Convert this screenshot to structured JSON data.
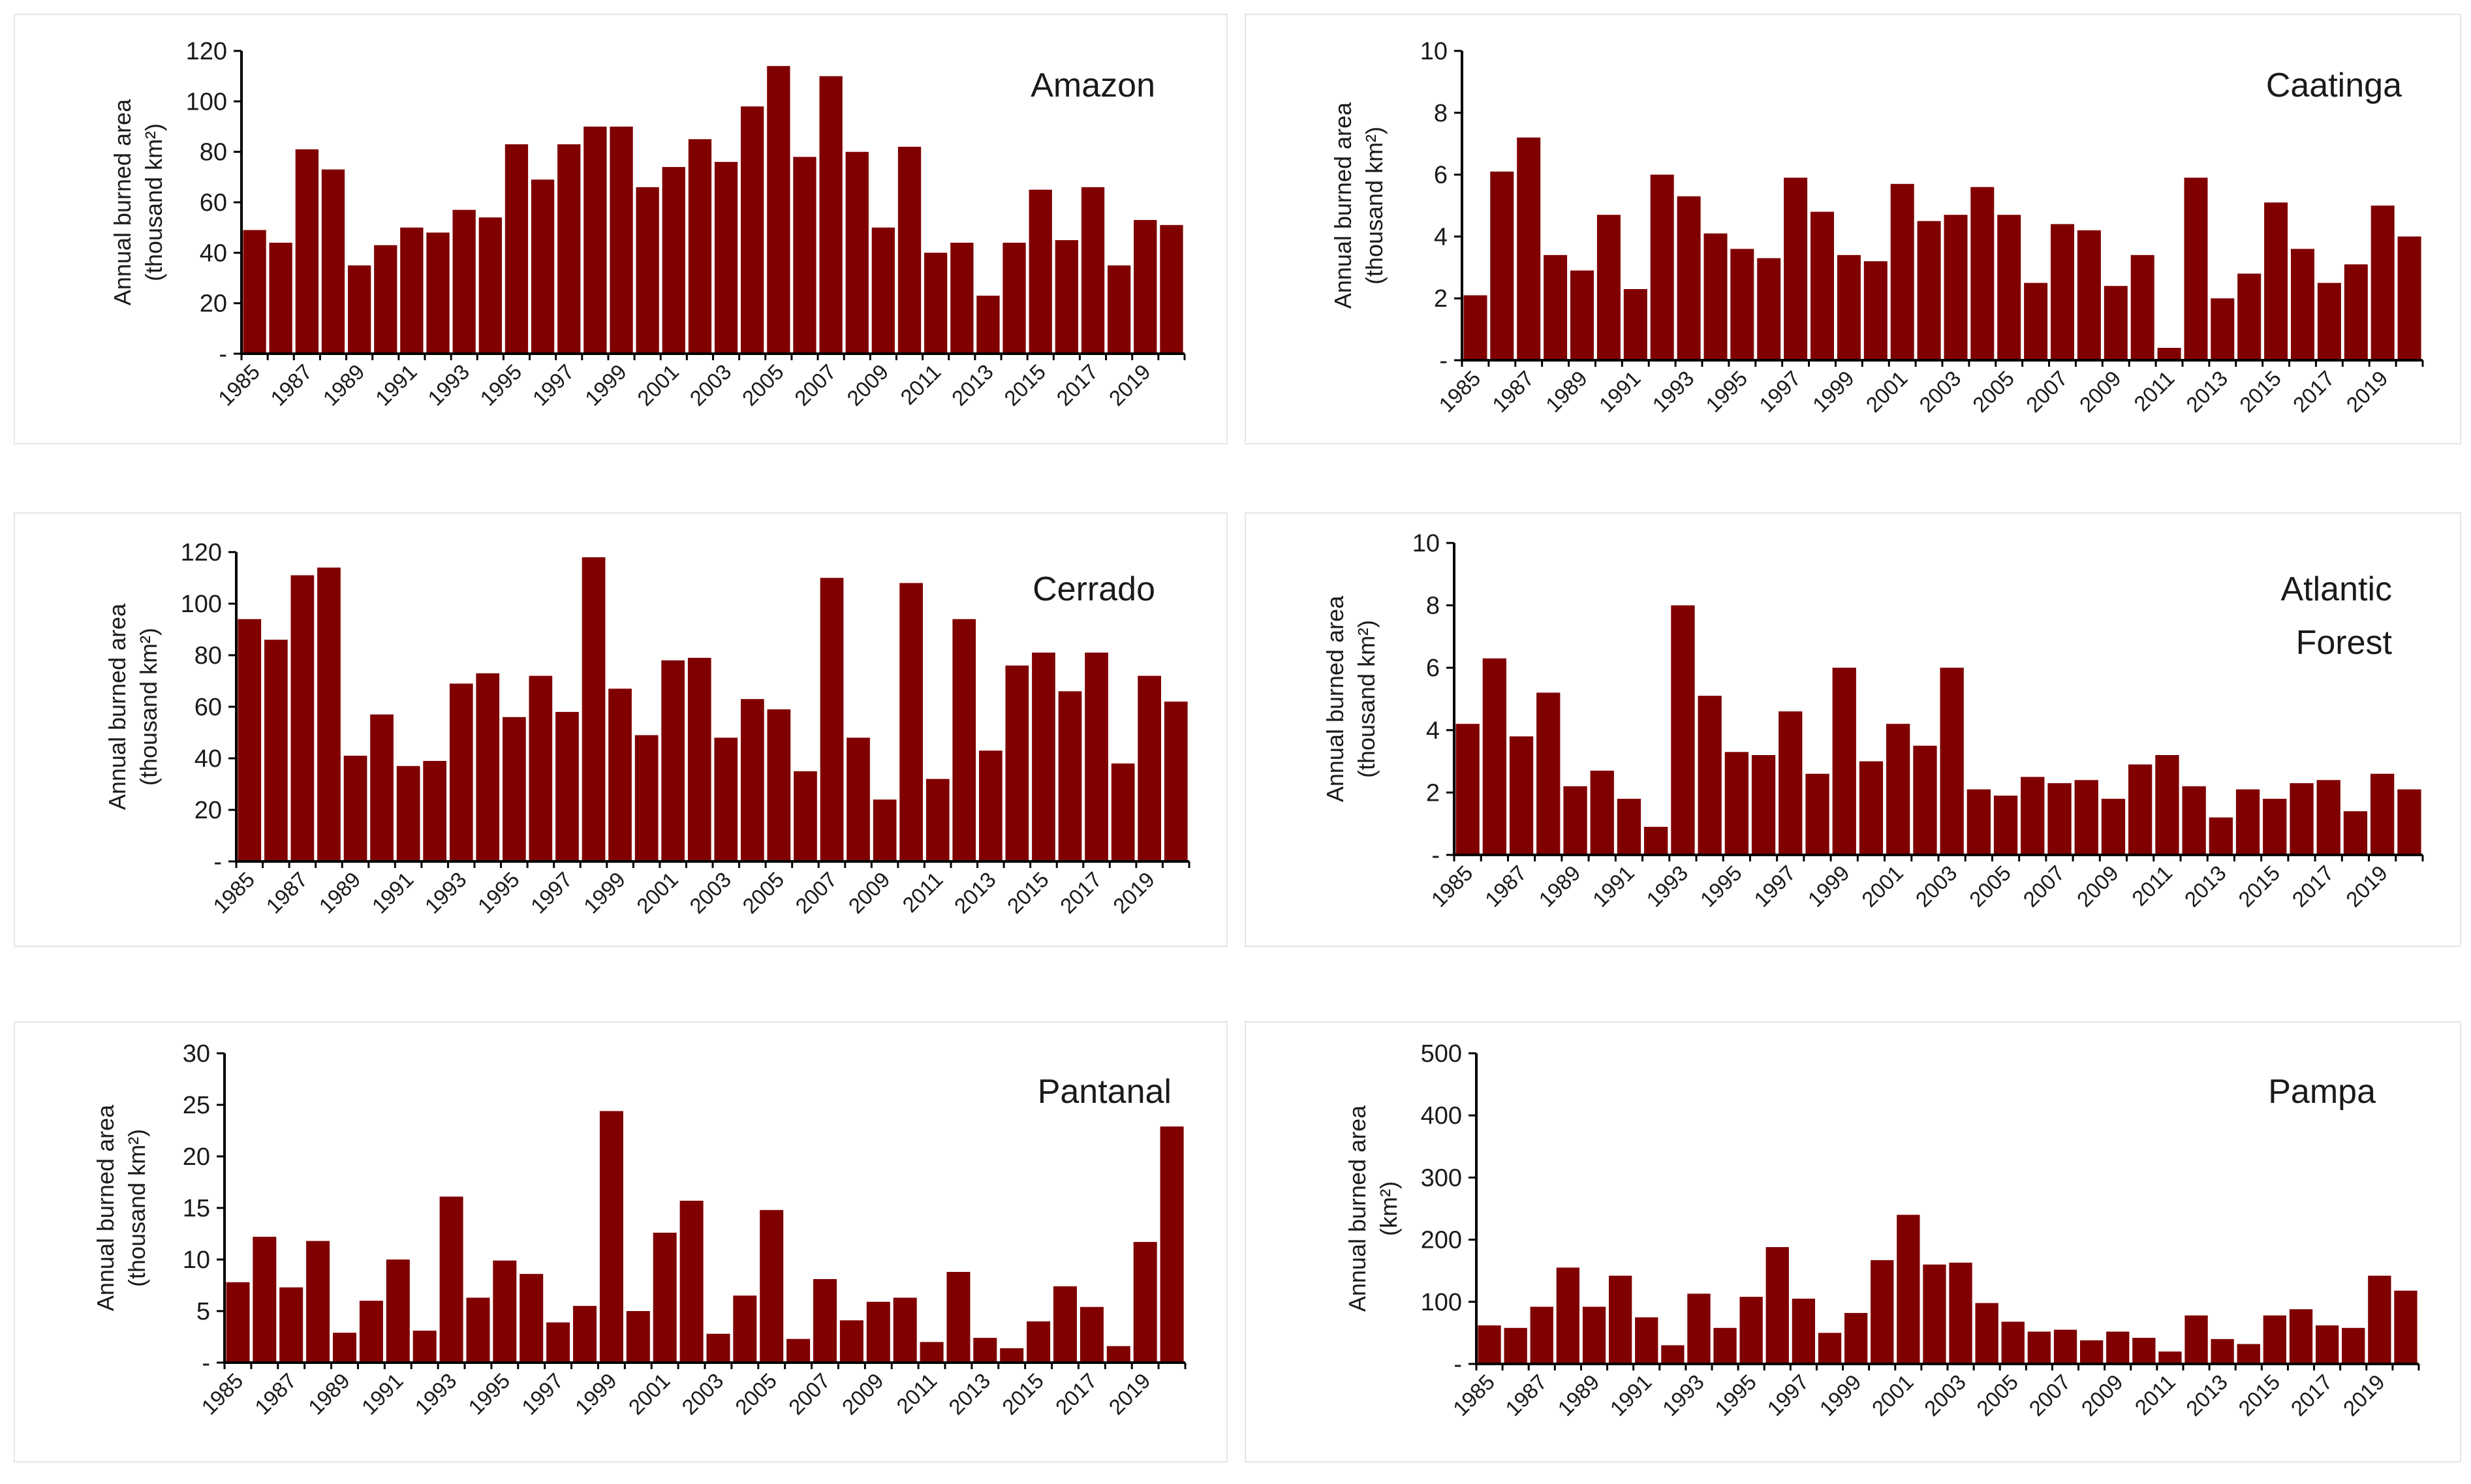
{
  "figure": {
    "bar_color": "#800000",
    "axis_color": "#000000"
  },
  "chart_data": [
    {
      "type": "bar",
      "title": "Amazon",
      "ylabel": [
        "Annual burned area",
        "(thousand km²)"
      ],
      "xlabel": "",
      "ylim": [
        0,
        120
      ],
      "yticks": [
        0,
        20,
        40,
        60,
        80,
        100,
        120
      ],
      "ytick_labels": [
        "-",
        "20",
        "40",
        "60",
        "80",
        "100",
        "120"
      ],
      "categories": [
        "1985",
        "1986",
        "1987",
        "1988",
        "1989",
        "1990",
        "1991",
        "1992",
        "1993",
        "1994",
        "1995",
        "1996",
        "1997",
        "1998",
        "1999",
        "2000",
        "2001",
        "2002",
        "2003",
        "2004",
        "2005",
        "2006",
        "2007",
        "2008",
        "2009",
        "2010",
        "2011",
        "2012",
        "2013",
        "2014",
        "2015",
        "2016",
        "2017",
        "2018",
        "2019",
        "2020"
      ],
      "xtick_labels": [
        "1985",
        "1987",
        "1989",
        "1991",
        "1993",
        "1995",
        "1997",
        "1999",
        "2001",
        "2003",
        "2005",
        "2007",
        "2009",
        "2011",
        "2013",
        "2015",
        "2017",
        "2019"
      ],
      "values": [
        49,
        44,
        81,
        73,
        35,
        43,
        50,
        48,
        57,
        54,
        83,
        69,
        83,
        90,
        90,
        66,
        74,
        85,
        76,
        98,
        114,
        78,
        110,
        80,
        50,
        82,
        40,
        44,
        23,
        44,
        65,
        45,
        66,
        35,
        53,
        51
      ]
    },
    {
      "type": "bar",
      "title": "Caatinga",
      "ylabel": [
        "Annual burned area",
        "(thousand km²)"
      ],
      "xlabel": "",
      "ylim": [
        0,
        10
      ],
      "yticks": [
        0,
        2,
        4,
        6,
        8,
        10
      ],
      "ytick_labels": [
        "-",
        "2",
        "4",
        "6",
        "8",
        "10"
      ],
      "categories": [
        "1985",
        "1986",
        "1987",
        "1988",
        "1989",
        "1990",
        "1991",
        "1992",
        "1993",
        "1994",
        "1995",
        "1996",
        "1997",
        "1998",
        "1999",
        "2000",
        "2001",
        "2002",
        "2003",
        "2004",
        "2005",
        "2006",
        "2007",
        "2008",
        "2009",
        "2010",
        "2011",
        "2012",
        "2013",
        "2014",
        "2015",
        "2016",
        "2017",
        "2018",
        "2019",
        "2020"
      ],
      "xtick_labels": [
        "1985",
        "1987",
        "1989",
        "1991",
        "1993",
        "1995",
        "1997",
        "1999",
        "2001",
        "2003",
        "2005",
        "2007",
        "2009",
        "2011",
        "2013",
        "2015",
        "2017",
        "2019"
      ],
      "values": [
        2.1,
        6.1,
        7.2,
        3.4,
        2.9,
        4.7,
        2.3,
        6.0,
        5.3,
        4.1,
        3.6,
        3.3,
        5.9,
        4.8,
        3.4,
        3.2,
        5.7,
        4.5,
        4.7,
        5.6,
        4.7,
        2.5,
        4.4,
        4.2,
        2.4,
        3.4,
        0.4,
        5.9,
        2.0,
        2.8,
        5.1,
        3.6,
        2.5,
        3.1,
        5.0,
        4.0
      ]
    },
    {
      "type": "bar",
      "title": "Cerrado",
      "ylabel": [
        "Annual burned area",
        "(thousand km²)"
      ],
      "xlabel": "",
      "ylim": [
        0,
        120
      ],
      "yticks": [
        0,
        20,
        40,
        60,
        80,
        100,
        120
      ],
      "ytick_labels": [
        "-",
        "20",
        "40",
        "60",
        "80",
        "100",
        "120"
      ],
      "categories": [
        "1985",
        "1986",
        "1987",
        "1988",
        "1989",
        "1990",
        "1991",
        "1992",
        "1993",
        "1994",
        "1995",
        "1996",
        "1997",
        "1998",
        "1999",
        "2000",
        "2001",
        "2002",
        "2003",
        "2004",
        "2005",
        "2006",
        "2007",
        "2008",
        "2009",
        "2010",
        "2011",
        "2012",
        "2013",
        "2014",
        "2015",
        "2016",
        "2017",
        "2018",
        "2019",
        "2020"
      ],
      "xtick_labels": [
        "1985",
        "1987",
        "1989",
        "1991",
        "1993",
        "1995",
        "1997",
        "1999",
        "2001",
        "2003",
        "2005",
        "2007",
        "2009",
        "2011",
        "2013",
        "2015",
        "2017",
        "2019"
      ],
      "values": [
        94,
        86,
        111,
        114,
        41,
        57,
        37,
        39,
        69,
        73,
        56,
        72,
        58,
        118,
        67,
        49,
        78,
        79,
        48,
        63,
        59,
        35,
        110,
        48,
        24,
        108,
        32,
        94,
        43,
        76,
        81,
        66,
        81,
        38,
        72,
        62
      ]
    },
    {
      "type": "bar",
      "title": [
        "Atlantic",
        "Forest"
      ],
      "ylabel": [
        "Annual burned area",
        "(thousand km²)"
      ],
      "xlabel": "",
      "ylim": [
        0,
        10
      ],
      "yticks": [
        0,
        2,
        4,
        6,
        8,
        10
      ],
      "ytick_labels": [
        "-",
        "2",
        "4",
        "6",
        "8",
        "10"
      ],
      "categories": [
        "1985",
        "1986",
        "1987",
        "1988",
        "1989",
        "1990",
        "1991",
        "1992",
        "1993",
        "1994",
        "1995",
        "1996",
        "1997",
        "1998",
        "1999",
        "2000",
        "2001",
        "2002",
        "2003",
        "2004",
        "2005",
        "2006",
        "2007",
        "2008",
        "2009",
        "2010",
        "2011",
        "2012",
        "2013",
        "2014",
        "2015",
        "2016",
        "2017",
        "2018",
        "2019",
        "2020"
      ],
      "xtick_labels": [
        "1985",
        "1987",
        "1989",
        "1991",
        "1993",
        "1995",
        "1997",
        "1999",
        "2001",
        "2003",
        "2005",
        "2007",
        "2009",
        "2011",
        "2013",
        "2015",
        "2017",
        "2019"
      ],
      "values": [
        4.2,
        6.3,
        3.8,
        5.2,
        2.2,
        2.7,
        1.8,
        0.9,
        8.0,
        5.1,
        3.3,
        3.2,
        4.6,
        2.6,
        6.0,
        3.0,
        4.2,
        3.5,
        6.0,
        2.1,
        1.9,
        2.5,
        2.3,
        2.4,
        1.8,
        2.9,
        3.2,
        2.2,
        1.2,
        2.1,
        1.8,
        2.3,
        2.4,
        1.4,
        2.6,
        2.1
      ]
    },
    {
      "type": "bar",
      "title": "Pantanal",
      "ylabel": [
        "Annual burned area",
        "(thousand km²)"
      ],
      "xlabel": "",
      "ylim": [
        0,
        30
      ],
      "yticks": [
        0,
        5,
        10,
        15,
        20,
        25,
        30
      ],
      "ytick_labels": [
        "-",
        "5",
        "10",
        "15",
        "20",
        "25",
        "30"
      ],
      "categories": [
        "1985",
        "1986",
        "1987",
        "1988",
        "1989",
        "1990",
        "1991",
        "1992",
        "1993",
        "1994",
        "1995",
        "1996",
        "1997",
        "1998",
        "1999",
        "2000",
        "2001",
        "2002",
        "2003",
        "2004",
        "2005",
        "2006",
        "2007",
        "2008",
        "2009",
        "2010",
        "2011",
        "2012",
        "2013",
        "2014",
        "2015",
        "2016",
        "2017",
        "2018",
        "2019",
        "2020"
      ],
      "xtick_labels": [
        "1985",
        "1987",
        "1989",
        "1991",
        "1993",
        "1995",
        "1997",
        "1999",
        "2001",
        "2003",
        "2005",
        "2007",
        "2009",
        "2011",
        "2013",
        "2015",
        "2017",
        "2019"
      ],
      "values": [
        7.8,
        12.2,
        7.3,
        11.8,
        2.9,
        6.0,
        10.0,
        3.1,
        16.1,
        6.3,
        9.9,
        8.6,
        3.9,
        5.5,
        24.4,
        5.0,
        12.6,
        15.7,
        2.8,
        6.5,
        14.8,
        2.3,
        8.1,
        4.1,
        5.9,
        6.3,
        2.0,
        8.8,
        2.4,
        1.4,
        4.0,
        7.4,
        5.4,
        1.6,
        11.7,
        22.9
      ]
    },
    {
      "type": "bar",
      "title": "Pampa",
      "ylabel": [
        "Annual burned area",
        "(km²)"
      ],
      "xlabel": "",
      "ylim": [
        0,
        500
      ],
      "yticks": [
        0,
        100,
        200,
        300,
        400,
        500
      ],
      "ytick_labels": [
        "-",
        "100",
        "200",
        "300",
        "400",
        "500"
      ],
      "categories": [
        "1985",
        "1986",
        "1987",
        "1988",
        "1989",
        "1990",
        "1991",
        "1992",
        "1993",
        "1994",
        "1995",
        "1996",
        "1997",
        "1998",
        "1999",
        "2000",
        "2001",
        "2002",
        "2003",
        "2004",
        "2005",
        "2006",
        "2007",
        "2008",
        "2009",
        "2010",
        "2011",
        "2012",
        "2013",
        "2014",
        "2015",
        "2016",
        "2017",
        "2018",
        "2019",
        "2020"
      ],
      "xtick_labels": [
        "1985",
        "1987",
        "1989",
        "1991",
        "1993",
        "1995",
        "1997",
        "1999",
        "2001",
        "2003",
        "2005",
        "2007",
        "2009",
        "2011",
        "2013",
        "2015",
        "2017",
        "2019"
      ],
      "values": [
        62,
        58,
        92,
        155,
        92,
        142,
        75,
        30,
        113,
        58,
        108,
        188,
        105,
        50,
        82,
        167,
        240,
        160,
        163,
        98,
        68,
        52,
        55,
        38,
        52,
        42,
        20,
        78,
        40,
        32,
        78,
        88,
        62,
        58,
        142,
        118
      ]
    }
  ]
}
